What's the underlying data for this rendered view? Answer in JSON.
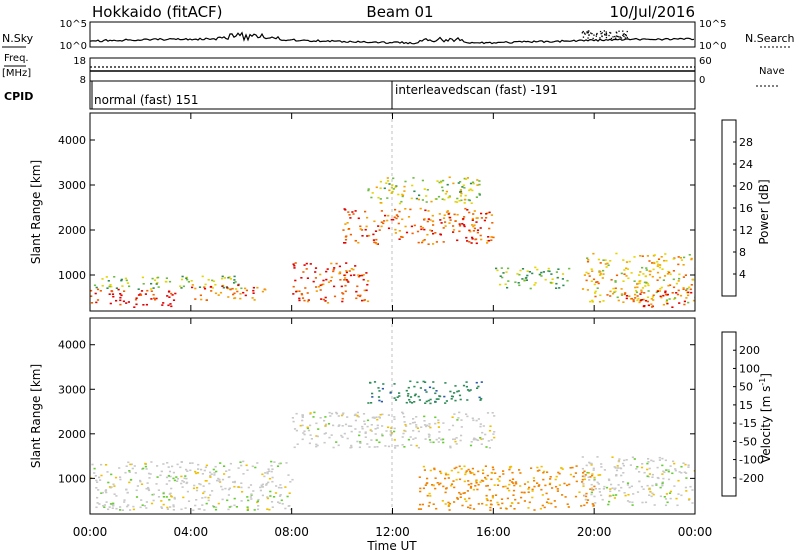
{
  "header": {
    "station": "Hokkaido (fitACF)",
    "beam": "Beam 01",
    "date": "10/Jul/2016"
  },
  "noise_panel": {
    "left_label": "N.Sky",
    "right_label": "N.Search",
    "y_ticks": [
      "10^5",
      "10^0"
    ]
  },
  "freq_panel": {
    "left_label": "Freq.",
    "left_unit": "[MHz]",
    "right_label": "Nave",
    "left_ticks": [
      "18",
      "8"
    ],
    "right_ticks": [
      "60",
      "0"
    ]
  },
  "cpid_panel": {
    "label": "CPID",
    "modes": [
      "normal (fast) 151",
      "interleavedscan (fast) -191"
    ]
  },
  "power_panel": {
    "ylabel": "Slant Range [km]",
    "y_ticks": [
      "1000",
      "2000",
      "3000",
      "4000"
    ],
    "colorbar_label": "Power [dB]",
    "colorbar_ticks": [
      "4",
      "8",
      "12",
      "16",
      "20",
      "24",
      "28"
    ],
    "colors": [
      "#0000ee",
      "#2a5aa8",
      "#2e8b57",
      "#6dbb45",
      "#e6d400",
      "#f5a000",
      "#f06000",
      "#e00000"
    ]
  },
  "velocity_panel": {
    "ylabel": "Slant Range [km]",
    "y_ticks": [
      "1000",
      "2000",
      "3000",
      "4000"
    ],
    "colorbar_label": "Velocity [m s",
    "colorbar_exp": "-1",
    "colorbar_label_end": "]",
    "colorbar_ticks": [
      "200",
      "100",
      "50",
      "15",
      "-15",
      "-50",
      "-100",
      "-200"
    ],
    "colors": [
      "#1a2a9a",
      "#2a5aa8",
      "#2e8b57",
      "#66cc33",
      "#c8c8c8",
      "#f0c000",
      "#f08000",
      "#e05000",
      "#e00000"
    ]
  },
  "x_axis": {
    "ticks": [
      "00:00",
      "04:00",
      "08:00",
      "12:00",
      "16:00",
      "20:00",
      "00:00"
    ],
    "label": "Time UT"
  },
  "chart_data": {
    "type": "heatmap",
    "x_range_hours": [
      0,
      24
    ],
    "y_range_km": [
      200,
      4600
    ],
    "power_regions": [
      {
        "t": [
          0,
          3.5
        ],
        "r": [
          300,
          700
        ],
        "level": 28
      },
      {
        "t": [
          0,
          6
        ],
        "r": [
          700,
          1000
        ],
        "level": 12
      },
      {
        "t": [
          4,
          7
        ],
        "r": [
          450,
          800
        ],
        "level": 24
      },
      {
        "t": [
          8,
          11
        ],
        "r": [
          400,
          1300
        ],
        "level": 26
      },
      {
        "t": [
          10,
          16
        ],
        "r": [
          1700,
          2500
        ],
        "level": 24
      },
      {
        "t": [
          11,
          15.5
        ],
        "r": [
          2600,
          3200
        ],
        "level": 14
      },
      {
        "t": [
          16,
          19
        ],
        "r": [
          700,
          1200
        ],
        "level": 12
      },
      {
        "t": [
          19.5,
          24
        ],
        "r": [
          400,
          1500
        ],
        "level": 18
      },
      {
        "t": [
          21,
          24
        ],
        "r": [
          300,
          700
        ],
        "level": 26
      }
    ],
    "velocity_regions": [
      {
        "t": [
          0,
          8
        ],
        "r": [
          300,
          1400
        ],
        "v": 0
      },
      {
        "t": [
          8,
          16
        ],
        "r": [
          1700,
          2500
        ],
        "v": 0
      },
      {
        "t": [
          11,
          15.5
        ],
        "r": [
          2700,
          3200
        ],
        "v": 60
      },
      {
        "t": [
          13,
          20
        ],
        "r": [
          300,
          1300
        ],
        "v": -40
      },
      {
        "t": [
          19.5,
          24
        ],
        "r": [
          400,
          1500
        ],
        "v": 0
      }
    ]
  }
}
